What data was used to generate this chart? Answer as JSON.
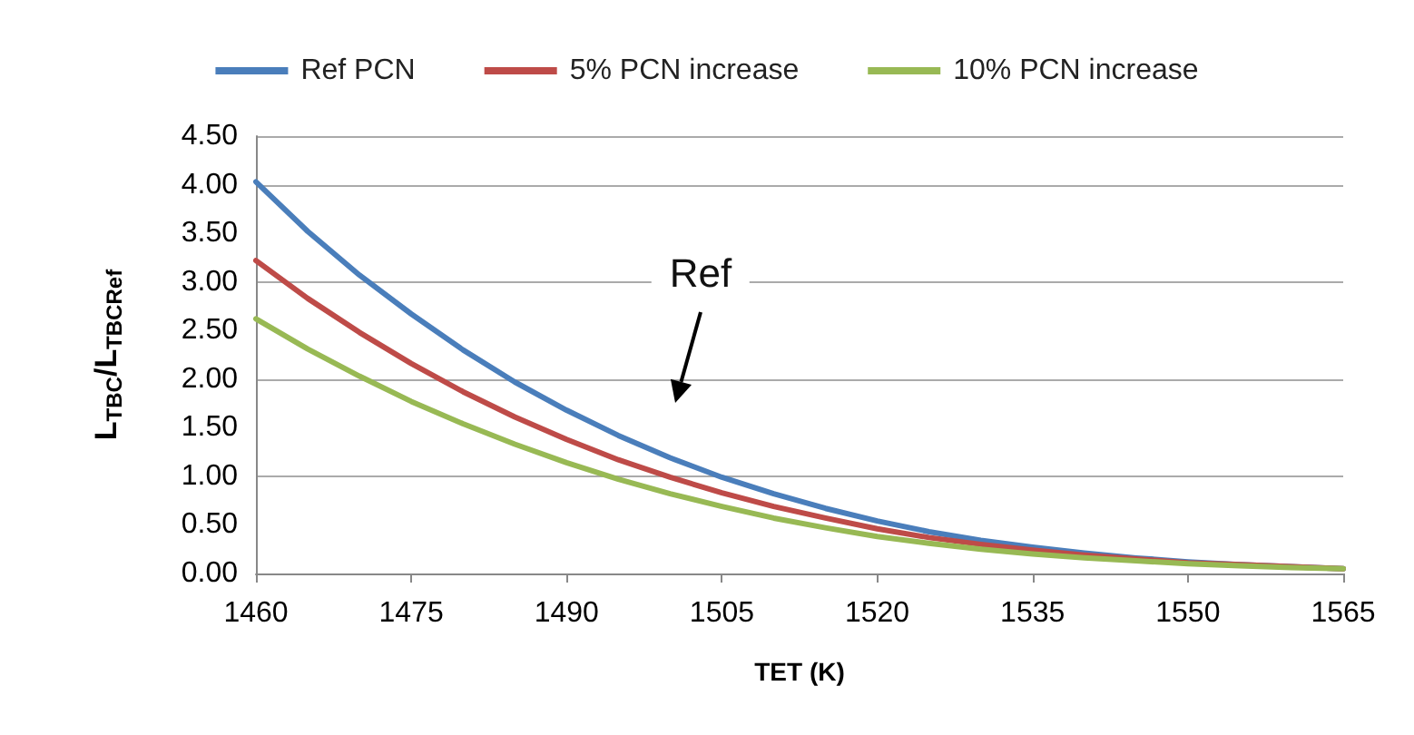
{
  "chart_data": {
    "type": "line",
    "xlabel": "TET (K)",
    "ylabel": "L$_{TBC}$/L$_{TBCRef}$",
    "x": [
      1460,
      1465,
      1470,
      1475,
      1480,
      1485,
      1490,
      1495,
      1500,
      1505,
      1510,
      1515,
      1520,
      1525,
      1530,
      1535,
      1540,
      1545,
      1550,
      1555,
      1560,
      1565
    ],
    "series": [
      {
        "name": "Ref PCN",
        "color": "#4a7ebb",
        "values": [
          4.03,
          3.52,
          3.07,
          2.67,
          2.3,
          1.97,
          1.68,
          1.42,
          1.19,
          0.99,
          0.82,
          0.67,
          0.54,
          0.43,
          0.34,
          0.27,
          0.21,
          0.16,
          0.12,
          0.09,
          0.07,
          0.05
        ]
      },
      {
        "name": "5% PCN increase",
        "color": "#be4b48",
        "values": [
          3.22,
          2.83,
          2.48,
          2.16,
          1.87,
          1.61,
          1.38,
          1.17,
          0.99,
          0.83,
          0.69,
          0.57,
          0.46,
          0.37,
          0.3,
          0.24,
          0.19,
          0.15,
          0.11,
          0.09,
          0.07,
          0.05
        ]
      },
      {
        "name": "10% PCN increase",
        "color": "#98b954",
        "values": [
          2.62,
          2.31,
          2.03,
          1.77,
          1.54,
          1.33,
          1.14,
          0.97,
          0.82,
          0.69,
          0.57,
          0.47,
          0.38,
          0.31,
          0.25,
          0.2,
          0.16,
          0.13,
          0.1,
          0.08,
          0.06,
          0.05
        ]
      }
    ],
    "xlim": [
      1460,
      1565
    ],
    "xticks": [
      1460,
      1475,
      1490,
      1505,
      1520,
      1535,
      1550,
      1565
    ],
    "ylim": [
      0,
      4.5
    ],
    "yticks": [
      {
        "value": 0,
        "label": "0.00"
      },
      {
        "value": 0.5,
        "label": "0.50"
      },
      {
        "value": 1,
        "label": "1.00"
      },
      {
        "value": 1.5,
        "label": "1.50"
      },
      {
        "value": 2,
        "label": "2.00"
      },
      {
        "value": 2.5,
        "label": "2.50"
      },
      {
        "value": 3,
        "label": "3.00"
      },
      {
        "value": 3.5,
        "label": "3.50"
      },
      {
        "value": 4,
        "label": "4.00"
      },
      {
        "value": 4.5,
        "label": "4.50"
      }
    ],
    "annotations": [
      "Ref"
    ],
    "grid": "y",
    "legend": "top",
    "marker": "none",
    "line_style": "solid"
  }
}
